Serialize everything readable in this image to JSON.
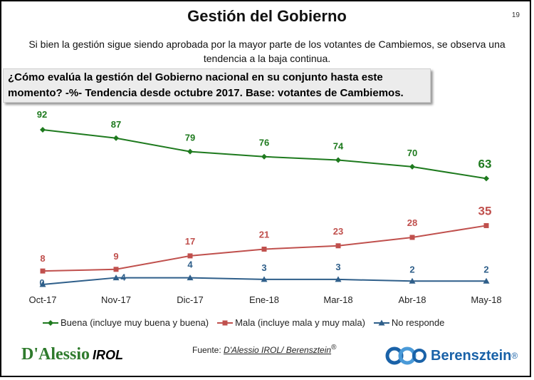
{
  "header": {
    "title": "Gestión del Gobierno",
    "page_number": "19",
    "subtitle_line1": "Si bien la gestión sigue siendo aprobada por la mayor parte de los votantes de Cambiemos, se observa una",
    "subtitle_line2": "tendencia a la baja continua.",
    "question_line1": "¿Cómo evalúa la gestión del Gobierno nacional en su conjunto hasta este",
    "question_line2": "momento? -%- Tendencia desde octubre 2017. Base: votantes de Cambiemos."
  },
  "chart_data": {
    "type": "line",
    "categories": [
      "Oct-17",
      "Nov-17",
      "Dic-17",
      "Ene-18",
      "Mar-18",
      "Abr-18",
      "May-18"
    ],
    "series": [
      {
        "name": "Buena (incluye muy buena y buena)",
        "values": [
          92,
          87,
          79,
          76,
          74,
          70,
          63
        ],
        "color": "#1e7a1e",
        "marker": "diamond"
      },
      {
        "name": "Mala (incluye mala y muy mala)",
        "values": [
          8,
          9,
          17,
          21,
          23,
          28,
          35
        ],
        "color": "#c0504d",
        "marker": "square"
      },
      {
        "name": "No responde",
        "values": [
          0,
          4,
          4,
          3,
          3,
          2,
          2
        ],
        "color": "#2f5f8a",
        "marker": "triangle"
      }
    ],
    "ylim": [
      0,
      100
    ],
    "grid": false,
    "legend": "bottom"
  },
  "footer": {
    "logo_left_main": "D'Alessio",
    "logo_left_sub": "IROL",
    "source_label": "Fuente:",
    "source_text": "D'Alessio IROL/ Berensztein",
    "source_mark": "®",
    "logo_right": "Berensztein",
    "logo_right_mark": "®"
  }
}
